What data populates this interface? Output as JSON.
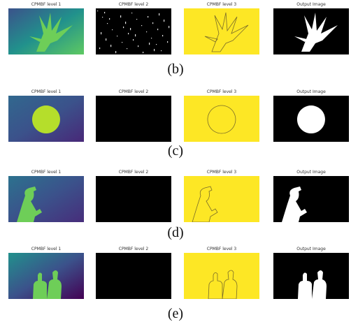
{
  "figure": {
    "rows": [
      {
        "caption": "(b)",
        "panels": [
          {
            "title": "CPMBF level 1"
          },
          {
            "title": "CPMBF level 2"
          },
          {
            "title": "CPMBF level 3"
          },
          {
            "title": "Output Image"
          }
        ]
      },
      {
        "caption": "(c)",
        "panels": [
          {
            "title": "CPMBF level 1"
          },
          {
            "title": "CPMBF level 2"
          },
          {
            "title": "CPMBF level 3"
          },
          {
            "title": "Output Image"
          }
        ]
      },
      {
        "caption": "(d)",
        "panels": [
          {
            "title": "CPMBF level 1"
          },
          {
            "title": "CPMBF level 2"
          },
          {
            "title": "CPMBF level 3"
          },
          {
            "title": "Output Image"
          }
        ]
      },
      {
        "caption": "(e)",
        "panels": [
          {
            "title": "CPMBF level 1"
          },
          {
            "title": "CPMBF level 2"
          },
          {
            "title": "CPMBF level 3"
          },
          {
            "title": "Output Image"
          }
        ]
      }
    ]
  }
}
